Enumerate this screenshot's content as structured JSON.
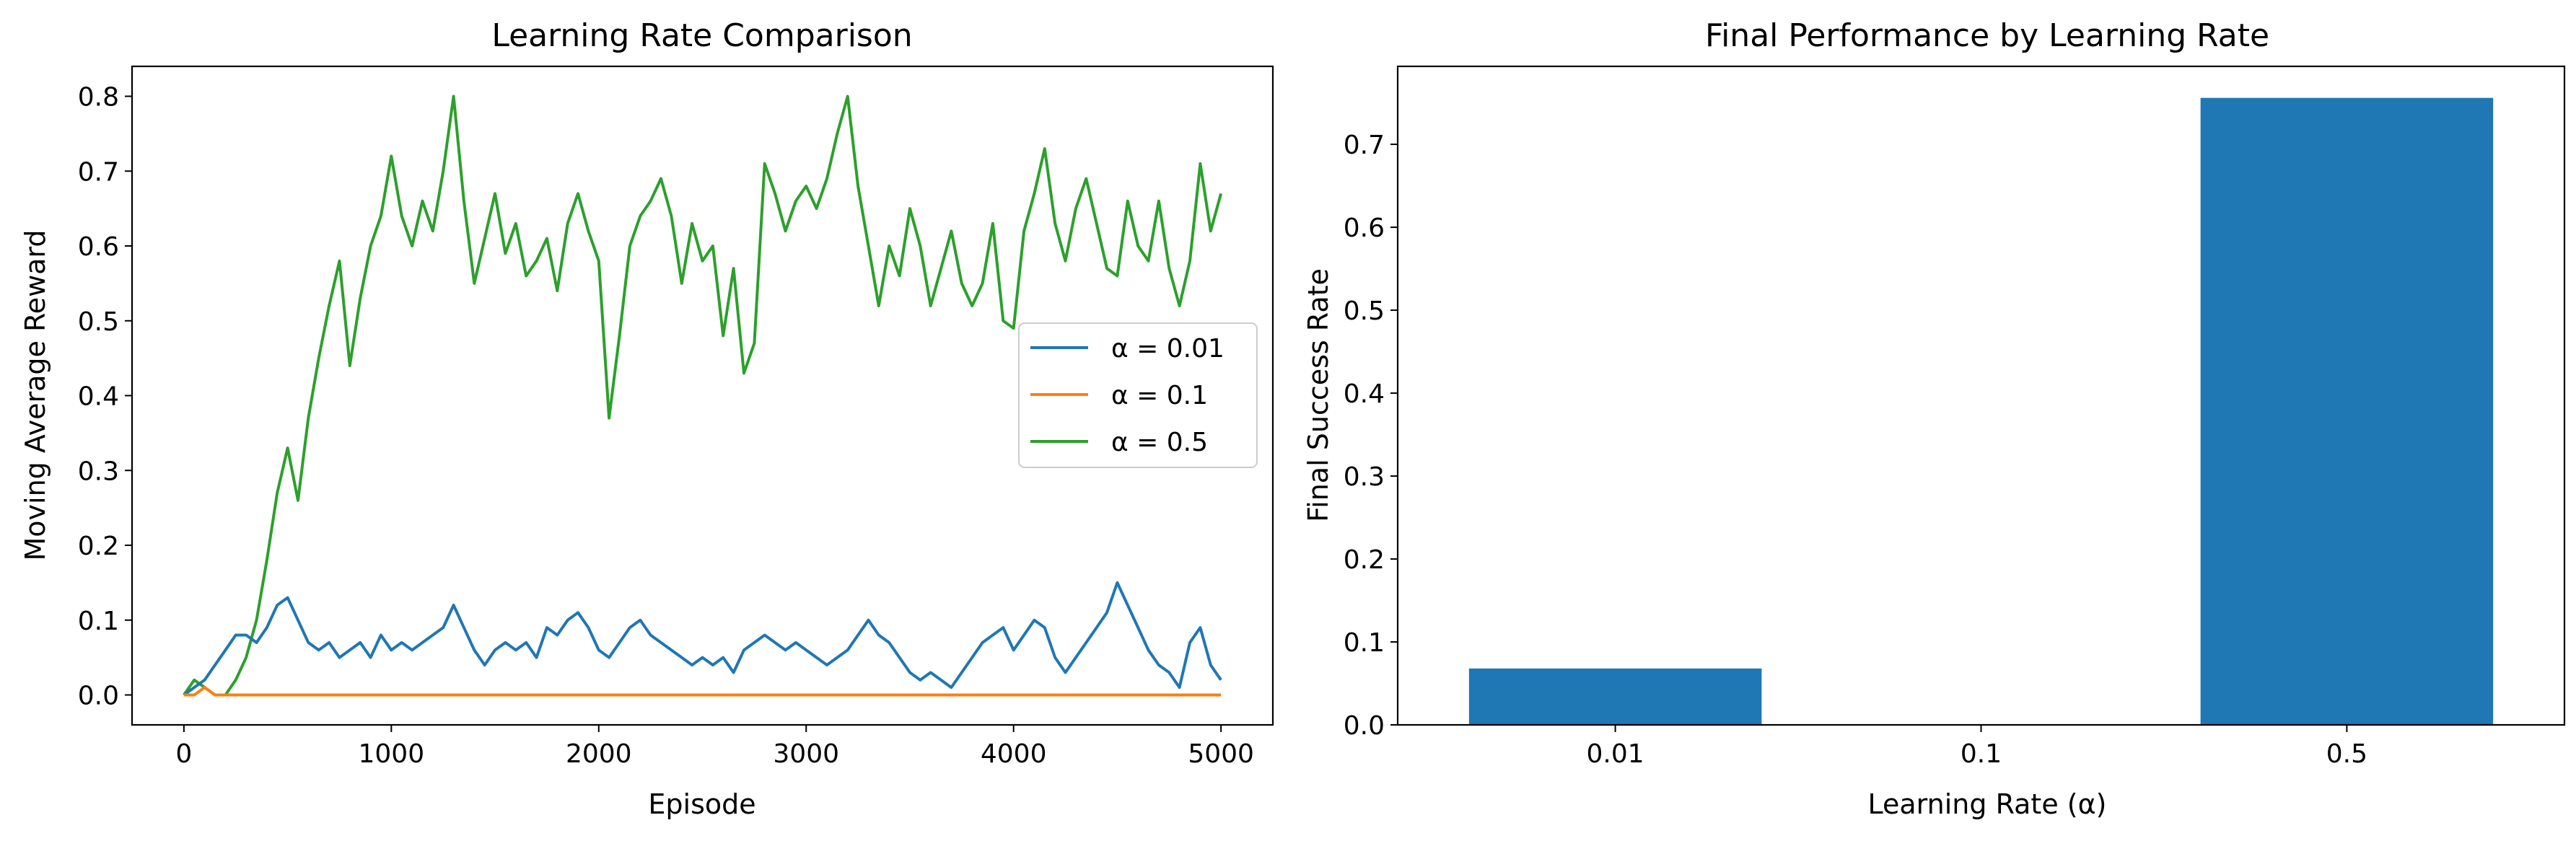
{
  "chart_data": [
    {
      "type": "line",
      "title": "Learning Rate Comparison",
      "xlabel": "Episode",
      "ylabel": "Moving Average Reward",
      "xlim": [
        -250,
        5250
      ],
      "ylim": [
        -0.04,
        0.84
      ],
      "xticks": [
        0,
        1000,
        2000,
        3000,
        4000,
        5000
      ],
      "yticks": [
        0.0,
        0.1,
        0.2,
        0.3,
        0.4,
        0.5,
        0.6,
        0.7,
        0.8
      ],
      "xtick_labels": [
        "0",
        "1000",
        "2000",
        "3000",
        "4000",
        "5000"
      ],
      "ytick_labels": [
        "0.0",
        "0.1",
        "0.2",
        "0.3",
        "0.4",
        "0.5",
        "0.6",
        "0.7",
        "0.8"
      ],
      "grid": false,
      "legend_position": "center-right",
      "series": [
        {
          "name": "α = 0.01",
          "color": "#1f77b4",
          "x": [
            0,
            50,
            100,
            150,
            200,
            250,
            300,
            350,
            400,
            450,
            500,
            550,
            600,
            650,
            700,
            750,
            800,
            850,
            900,
            950,
            1000,
            1050,
            1100,
            1150,
            1200,
            1250,
            1300,
            1350,
            1400,
            1450,
            1500,
            1550,
            1600,
            1650,
            1700,
            1750,
            1800,
            1850,
            1900,
            1950,
            2000,
            2050,
            2100,
            2150,
            2200,
            2250,
            2300,
            2350,
            2400,
            2450,
            2500,
            2550,
            2600,
            2650,
            2700,
            2750,
            2800,
            2850,
            2900,
            2950,
            3000,
            3050,
            3100,
            3150,
            3200,
            3250,
            3300,
            3350,
            3400,
            3450,
            3500,
            3550,
            3600,
            3650,
            3700,
            3750,
            3800,
            3850,
            3900,
            3950,
            4000,
            4050,
            4100,
            4150,
            4200,
            4250,
            4300,
            4350,
            4400,
            4450,
            4500,
            4550,
            4600,
            4650,
            4700,
            4750,
            4800,
            4850,
            4900,
            4950,
            5000
          ],
          "y": [
            0.0,
            0.01,
            0.02,
            0.04,
            0.06,
            0.08,
            0.08,
            0.07,
            0.09,
            0.12,
            0.13,
            0.1,
            0.07,
            0.06,
            0.07,
            0.05,
            0.06,
            0.07,
            0.05,
            0.08,
            0.06,
            0.07,
            0.06,
            0.07,
            0.08,
            0.09,
            0.12,
            0.09,
            0.06,
            0.04,
            0.06,
            0.07,
            0.06,
            0.07,
            0.05,
            0.09,
            0.08,
            0.1,
            0.11,
            0.09,
            0.06,
            0.05,
            0.07,
            0.09,
            0.1,
            0.08,
            0.07,
            0.06,
            0.05,
            0.04,
            0.05,
            0.04,
            0.05,
            0.03,
            0.06,
            0.07,
            0.08,
            0.07,
            0.06,
            0.07,
            0.06,
            0.05,
            0.04,
            0.05,
            0.06,
            0.08,
            0.1,
            0.08,
            0.07,
            0.05,
            0.03,
            0.02,
            0.03,
            0.02,
            0.01,
            0.03,
            0.05,
            0.07,
            0.08,
            0.09,
            0.06,
            0.08,
            0.1,
            0.09,
            0.05,
            0.03,
            0.05,
            0.07,
            0.09,
            0.11,
            0.15,
            0.12,
            0.09,
            0.06,
            0.04,
            0.03,
            0.01,
            0.07,
            0.09,
            0.04,
            0.02
          ]
        },
        {
          "name": "α = 0.1",
          "color": "#ff7f0e",
          "x": [
            0,
            50,
            100,
            150,
            200,
            250,
            300,
            350,
            400,
            450,
            500,
            550,
            600,
            650,
            700,
            750,
            800,
            850,
            900,
            950,
            1000,
            1050,
            1100,
            1150,
            1200,
            1250,
            1300,
            1350,
            1400,
            1450,
            1500,
            1550,
            1600,
            1650,
            1700,
            1750,
            1800,
            1850,
            1900,
            1950,
            2000,
            2050,
            2100,
            2150,
            2200,
            2250,
            2300,
            2350,
            2400,
            2450,
            2500,
            2550,
            2600,
            2650,
            2700,
            2750,
            2800,
            2850,
            2900,
            2950,
            3000,
            3050,
            3100,
            3150,
            3200,
            3250,
            3300,
            3350,
            3400,
            3450,
            3500,
            3550,
            3600,
            3650,
            3700,
            3750,
            3800,
            3850,
            3900,
            3950,
            4000,
            4050,
            4100,
            4150,
            4200,
            4250,
            4300,
            4350,
            4400,
            4450,
            4500,
            4550,
            4600,
            4650,
            4700,
            4750,
            4800,
            4850,
            4900,
            4950,
            5000
          ],
          "y": [
            0.0,
            0.0,
            0.01,
            0.0,
            0.0,
            0.0,
            0.0,
            0.0,
            0.0,
            0.0,
            0.0,
            0.0,
            0.0,
            0.0,
            0.0,
            0.0,
            0.0,
            0.0,
            0.0,
            0.0,
            0.0,
            0.0,
            0.0,
            0.0,
            0.0,
            0.0,
            0.0,
            0.0,
            0.0,
            0.0,
            0.0,
            0.0,
            0.0,
            0.0,
            0.0,
            0.0,
            0.0,
            0.0,
            0.0,
            0.0,
            0.0,
            0.0,
            0.0,
            0.0,
            0.0,
            0.0,
            0.0,
            0.0,
            0.0,
            0.0,
            0.0,
            0.0,
            0.0,
            0.0,
            0.0,
            0.0,
            0.0,
            0.0,
            0.0,
            0.0,
            0.0,
            0.0,
            0.0,
            0.0,
            0.0,
            0.0,
            0.0,
            0.0,
            0.0,
            0.0,
            0.0,
            0.0,
            0.0,
            0.0,
            0.0,
            0.0,
            0.0,
            0.0,
            0.0,
            0.0,
            0.0,
            0.0,
            0.0,
            0.0,
            0.0,
            0.0,
            0.0,
            0.0,
            0.0,
            0.0,
            0.0,
            0.0,
            0.0,
            0.0,
            0.0,
            0.0,
            0.0,
            0.0,
            0.0,
            0.0,
            0.0
          ]
        },
        {
          "name": "α = 0.5",
          "color": "#2ca02c",
          "x": [
            0,
            50,
            100,
            150,
            200,
            250,
            300,
            350,
            400,
            450,
            500,
            550,
            600,
            650,
            700,
            750,
            800,
            850,
            900,
            950,
            1000,
            1050,
            1100,
            1150,
            1200,
            1250,
            1300,
            1350,
            1400,
            1450,
            1500,
            1550,
            1600,
            1650,
            1700,
            1750,
            1800,
            1850,
            1900,
            1950,
            2000,
            2050,
            2100,
            2150,
            2200,
            2250,
            2300,
            2350,
            2400,
            2450,
            2500,
            2550,
            2600,
            2650,
            2700,
            2750,
            2800,
            2850,
            2900,
            2950,
            3000,
            3050,
            3100,
            3150,
            3200,
            3250,
            3300,
            3350,
            3400,
            3450,
            3500,
            3550,
            3600,
            3650,
            3700,
            3750,
            3800,
            3850,
            3900,
            3950,
            4000,
            4050,
            4100,
            4150,
            4200,
            4250,
            4300,
            4350,
            4400,
            4450,
            4500,
            4550,
            4600,
            4650,
            4700,
            4750,
            4800,
            4850,
            4900,
            4950,
            5000
          ],
          "y": [
            0.0,
            0.02,
            0.01,
            0.0,
            0.0,
            0.02,
            0.05,
            0.1,
            0.18,
            0.27,
            0.33,
            0.26,
            0.37,
            0.45,
            0.52,
            0.58,
            0.44,
            0.53,
            0.6,
            0.64,
            0.72,
            0.64,
            0.6,
            0.66,
            0.62,
            0.7,
            0.8,
            0.66,
            0.55,
            0.61,
            0.67,
            0.59,
            0.63,
            0.56,
            0.58,
            0.61,
            0.54,
            0.63,
            0.67,
            0.62,
            0.58,
            0.37,
            0.48,
            0.6,
            0.64,
            0.66,
            0.69,
            0.64,
            0.55,
            0.63,
            0.58,
            0.6,
            0.48,
            0.57,
            0.43,
            0.47,
            0.71,
            0.67,
            0.62,
            0.66,
            0.68,
            0.65,
            0.69,
            0.75,
            0.8,
            0.68,
            0.6,
            0.52,
            0.6,
            0.56,
            0.65,
            0.6,
            0.52,
            0.57,
            0.62,
            0.55,
            0.52,
            0.55,
            0.63,
            0.5,
            0.49,
            0.62,
            0.67,
            0.73,
            0.63,
            0.58,
            0.65,
            0.69,
            0.63,
            0.57,
            0.56,
            0.66,
            0.6,
            0.58,
            0.66,
            0.57,
            0.52,
            0.58,
            0.71,
            0.62,
            0.67
          ]
        }
      ]
    },
    {
      "type": "bar",
      "title": "Final Performance by Learning Rate",
      "xlabel": "Learning Rate (α)",
      "ylabel": "Final Success Rate",
      "categories": [
        "0.01",
        "0.1",
        "0.5"
      ],
      "values": [
        0.068,
        0.0,
        0.756
      ],
      "ylim": [
        0,
        0.794
      ],
      "yticks": [
        0.0,
        0.1,
        0.2,
        0.3,
        0.4,
        0.5,
        0.6,
        0.7
      ],
      "ytick_labels": [
        "0.0",
        "0.1",
        "0.2",
        "0.3",
        "0.4",
        "0.5",
        "0.6",
        "0.7"
      ],
      "bar_color": "#1f77b4",
      "grid": false
    }
  ]
}
